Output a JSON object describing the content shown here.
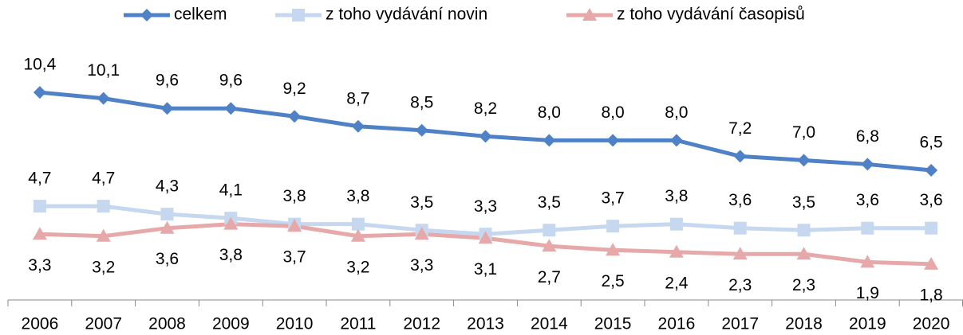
{
  "chart_data": {
    "type": "line",
    "categories": [
      "2006",
      "2007",
      "2008",
      "2009",
      "2010",
      "2011",
      "2012",
      "2013",
      "2014",
      "2015",
      "2016",
      "2017",
      "2018",
      "2019",
      "2020"
    ],
    "ylim": [
      0,
      12
    ],
    "legend": "top",
    "series": [
      {
        "name": "celkem",
        "color": "#4f81c7",
        "marker": "diamond",
        "label_position": "above",
        "values": [
          10.4,
          10.1,
          9.6,
          9.6,
          9.2,
          8.7,
          8.5,
          8.2,
          8.0,
          8.0,
          8.0,
          7.2,
          7.0,
          6.8,
          6.5
        ],
        "value_labels": [
          "10,4",
          "10,1",
          "9,6",
          "9,6",
          "9,2",
          "8,7",
          "8,5",
          "8,2",
          "8,0",
          "8,0",
          "8,0",
          "7,2",
          "7,0",
          "6,8",
          "6,5"
        ]
      },
      {
        "name": "z toho vydávání novin",
        "color": "#c6d7f0",
        "marker": "square",
        "label_position": "above",
        "values": [
          4.7,
          4.7,
          4.3,
          4.1,
          3.8,
          3.8,
          3.5,
          3.3,
          3.5,
          3.7,
          3.8,
          3.6,
          3.5,
          3.6,
          3.6
        ],
        "value_labels": [
          "4,7",
          "4,7",
          "4,3",
          "4,1",
          "3,8",
          "3,8",
          "3,5",
          "3,3",
          "3,5",
          "3,7",
          "3,8",
          "3,6",
          "3,5",
          "3,6",
          "3,6"
        ]
      },
      {
        "name": "z toho vydávání časopisů",
        "color": "#e6a8a8",
        "marker": "triangle",
        "label_position": "below",
        "values": [
          3.3,
          3.2,
          3.6,
          3.8,
          3.7,
          3.2,
          3.3,
          3.1,
          2.7,
          2.5,
          2.4,
          2.3,
          2.3,
          1.9,
          1.8
        ],
        "value_labels": [
          "3,3",
          "3,2",
          "3,6",
          "3,8",
          "3,7",
          "3,2",
          "3,3",
          "3,1",
          "2,7",
          "2,5",
          "2,4",
          "2,3",
          "2,3",
          "1,9",
          "1,8"
        ]
      }
    ]
  }
}
